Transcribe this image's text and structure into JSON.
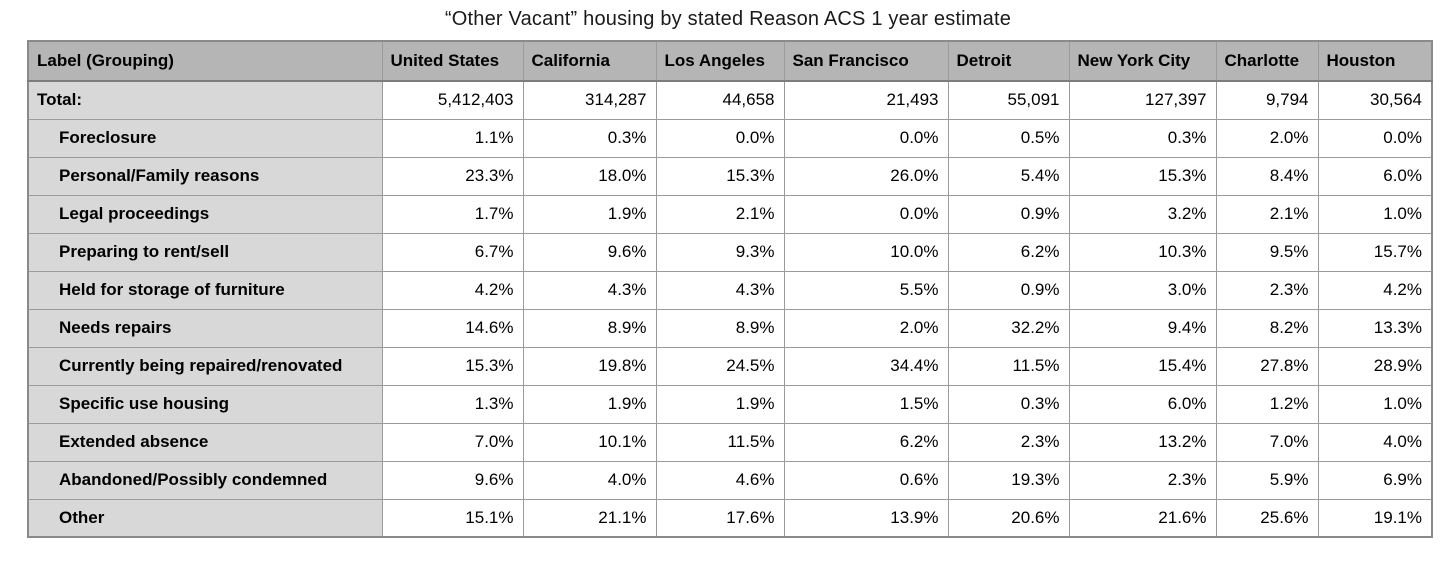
{
  "title": "“Other Vacant” housing by stated Reason ACS 1 year estimate",
  "chart_data": {
    "type": "table",
    "title": "“Other Vacant” housing by stated Reason ACS 1 year estimate",
    "columns": [
      "Label (Grouping)",
      "United States",
      "California",
      "Los Angeles",
      "San Francisco",
      "Detroit",
      "New York City",
      "Charlotte",
      "Houston"
    ],
    "rows": [
      {
        "label": "Total:",
        "indent": false,
        "values": [
          "5,412,403",
          "314,287",
          "44,658",
          "21,493",
          "55,091",
          "127,397",
          "9,794",
          "30,564"
        ]
      },
      {
        "label": "Foreclosure",
        "indent": true,
        "values": [
          "1.1%",
          "0.3%",
          "0.0%",
          "0.0%",
          "0.5%",
          "0.3%",
          "2.0%",
          "0.0%"
        ]
      },
      {
        "label": "Personal/Family reasons",
        "indent": true,
        "values": [
          "23.3%",
          "18.0%",
          "15.3%",
          "26.0%",
          "5.4%",
          "15.3%",
          "8.4%",
          "6.0%"
        ]
      },
      {
        "label": "Legal proceedings",
        "indent": true,
        "values": [
          "1.7%",
          "1.9%",
          "2.1%",
          "0.0%",
          "0.9%",
          "3.2%",
          "2.1%",
          "1.0%"
        ]
      },
      {
        "label": "Preparing to rent/sell",
        "indent": true,
        "values": [
          "6.7%",
          "9.6%",
          "9.3%",
          "10.0%",
          "6.2%",
          "10.3%",
          "9.5%",
          "15.7%"
        ]
      },
      {
        "label": "Held for storage of furniture",
        "indent": true,
        "values": [
          "4.2%",
          "4.3%",
          "4.3%",
          "5.5%",
          "0.9%",
          "3.0%",
          "2.3%",
          "4.2%"
        ]
      },
      {
        "label": "Needs repairs",
        "indent": true,
        "values": [
          "14.6%",
          "8.9%",
          "8.9%",
          "2.0%",
          "32.2%",
          "9.4%",
          "8.2%",
          "13.3%"
        ]
      },
      {
        "label": "Currently being repaired/renovated",
        "indent": true,
        "values": [
          "15.3%",
          "19.8%",
          "24.5%",
          "34.4%",
          "11.5%",
          "15.4%",
          "27.8%",
          "28.9%"
        ]
      },
      {
        "label": "Specific use housing",
        "indent": true,
        "values": [
          "1.3%",
          "1.9%",
          "1.9%",
          "1.5%",
          "0.3%",
          "6.0%",
          "1.2%",
          "1.0%"
        ]
      },
      {
        "label": "Extended absence",
        "indent": true,
        "values": [
          "7.0%",
          "10.1%",
          "11.5%",
          "6.2%",
          "2.3%",
          "13.2%",
          "7.0%",
          "4.0%"
        ]
      },
      {
        "label": "Abandoned/Possibly condemned",
        "indent": true,
        "values": [
          "9.6%",
          "4.0%",
          "4.6%",
          "0.6%",
          "19.3%",
          "2.3%",
          "5.9%",
          "6.9%"
        ]
      },
      {
        "label": "Other",
        "indent": true,
        "values": [
          "15.1%",
          "21.1%",
          "17.6%",
          "13.9%",
          "20.6%",
          "21.6%",
          "25.6%",
          "19.1%"
        ]
      }
    ],
    "layout": {
      "header_align": "left",
      "value_align": "right",
      "grid": true,
      "legend": "none"
    }
  },
  "colors": {
    "header_bg": "#b5b5b5",
    "label_column_bg": "#d8d8d8",
    "data_cell_bg": "#ffffff",
    "border": "#9b9b9b",
    "text": "#000000"
  }
}
